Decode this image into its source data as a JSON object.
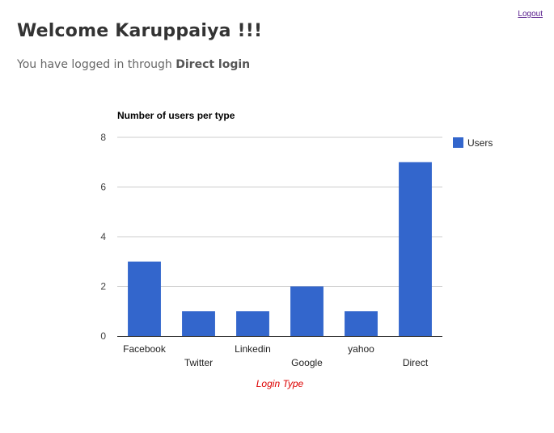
{
  "header": {
    "logout_label": "Logout",
    "welcome": "Welcome Karuppaiya !!!",
    "login_prefix": "You have logged in through",
    "login_method": "Direct login"
  },
  "chart_data": {
    "type": "bar",
    "title": "Number of users per type",
    "xlabel": "Login Type",
    "ylabel": "",
    "categories": [
      "Facebook",
      "Twitter",
      "Linkedin",
      "Google",
      "yahoo",
      "Direct"
    ],
    "series": [
      {
        "name": "Users",
        "values": [
          3,
          1,
          1,
          2,
          1,
          7
        ],
        "color": "#3366cc"
      }
    ],
    "ylim": [
      0,
      8
    ],
    "yticks": [
      0,
      2,
      4,
      6,
      8
    ],
    "grid": true,
    "legend": "right",
    "xlabel_color": "#dd0000"
  }
}
